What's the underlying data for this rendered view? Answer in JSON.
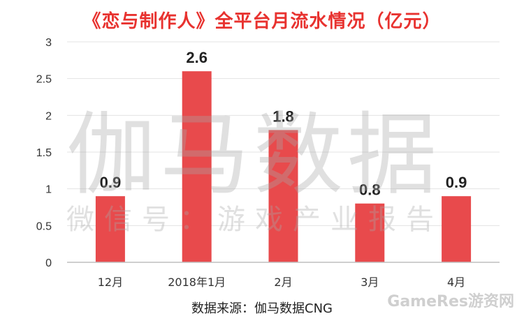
{
  "chart_data": {
    "type": "bar",
    "title": "《恋与制作人》全平台月流水情况（亿元）",
    "categories": [
      "12月",
      "2018年1月",
      "2月",
      "3月",
      "4月"
    ],
    "values": [
      0.9,
      2.6,
      1.8,
      0.8,
      0.9
    ],
    "value_labels": [
      "0.9",
      "2.6",
      "1.8",
      "0.8",
      "0.9"
    ],
    "ylim": [
      0,
      3
    ],
    "yticks": [
      "0",
      "0.5",
      "1",
      "1.5",
      "2",
      "2.5",
      "3"
    ],
    "ytick_values": [
      0,
      0.5,
      1,
      1.5,
      2,
      2.5,
      3
    ],
    "grid": true,
    "legend": "none",
    "bar_color": "#e84a4c",
    "title_color": "#e8322f"
  },
  "watermark": {
    "main": "伽马数据",
    "sub": "微信号：游戏产业报告",
    "corner": "GameRes游资网"
  },
  "source": "数据来源：伽马数据CNG"
}
